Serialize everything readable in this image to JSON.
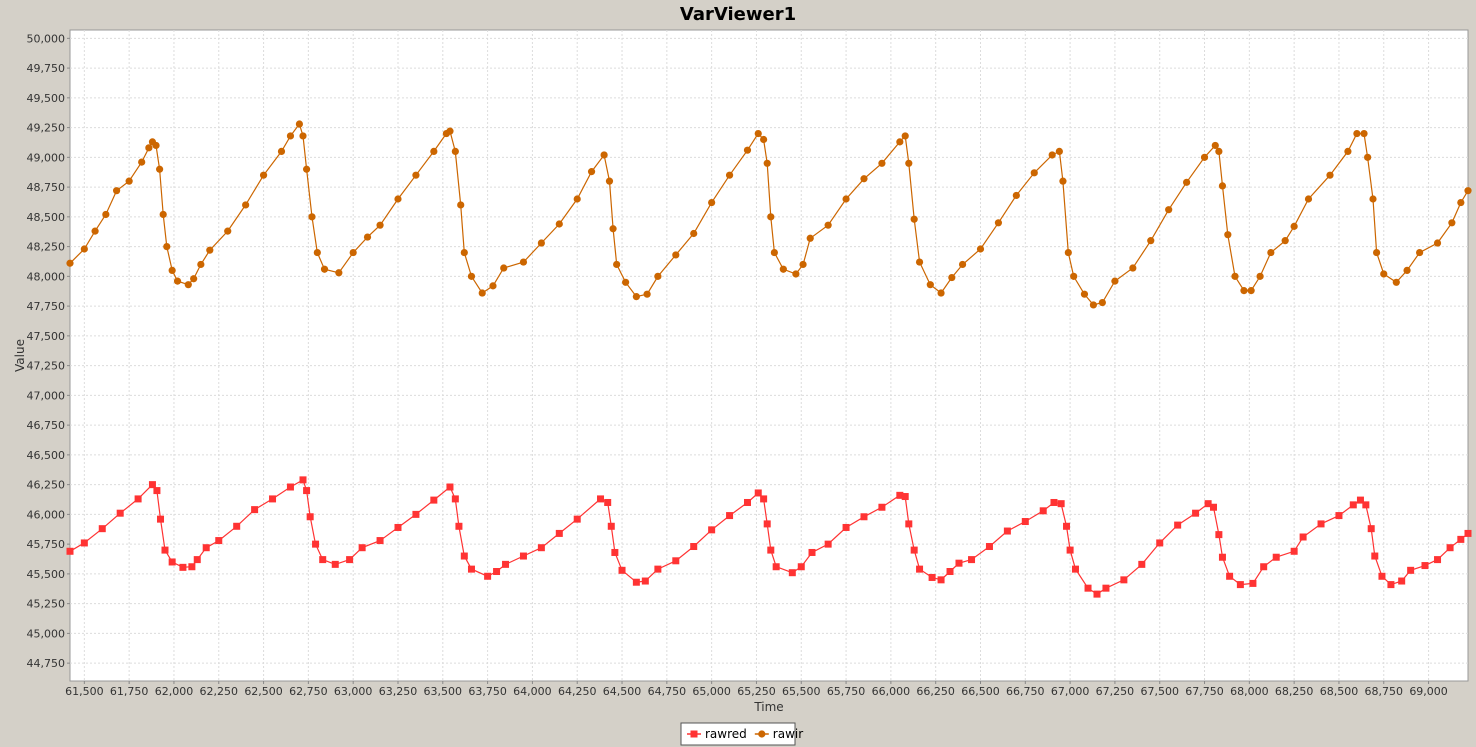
{
  "window": {
    "title": "VarViewer1"
  },
  "chart_data": {
    "type": "line",
    "title": "VarViewer1",
    "xlabel": "Time",
    "ylabel": "Value",
    "xlim": [
      61420,
      69220
    ],
    "ylim": [
      44600,
      50070
    ],
    "xticks": [
      61500,
      61750,
      62000,
      62250,
      62500,
      62750,
      63000,
      63250,
      63500,
      63750,
      64000,
      64250,
      64500,
      64750,
      65000,
      65250,
      65500,
      65750,
      66000,
      66250,
      66500,
      66750,
      67000,
      67250,
      67500,
      67750,
      68000,
      68250,
      68500,
      68750,
      69000
    ],
    "xtick_labels": [
      "61,500",
      "61,750",
      "62,000",
      "62,250",
      "62,500",
      "62,750",
      "63,000",
      "63,250",
      "63,500",
      "63,750",
      "64,000",
      "64,250",
      "64,500",
      "64,750",
      "65,000",
      "65,250",
      "65,500",
      "65,750",
      "66,000",
      "66,250",
      "66,500",
      "66,750",
      "67,000",
      "67,250",
      "67,500",
      "67,750",
      "68,000",
      "68,250",
      "68,500",
      "68,750",
      "69,000"
    ],
    "yticks": [
      44750,
      45000,
      45250,
      45500,
      45750,
      46000,
      46250,
      46500,
      46750,
      47000,
      47250,
      47500,
      47750,
      48000,
      48250,
      48500,
      48750,
      49000,
      49250,
      49500,
      49750,
      50000
    ],
    "ytick_labels": [
      "44,750",
      "45,000",
      "45,250",
      "45,500",
      "45,750",
      "46,000",
      "46,250",
      "46,500",
      "46,750",
      "47,000",
      "47,250",
      "47,500",
      "47,750",
      "48,000",
      "48,250",
      "48,500",
      "48,750",
      "49,000",
      "49,250",
      "49,500",
      "49,750",
      "50,000"
    ],
    "grid": true,
    "legend_position": "bottom-center",
    "series": [
      {
        "name": "rawred",
        "color": "#ff3333",
        "marker": "square",
        "points": [
          [
            61420,
            45690
          ],
          [
            61500,
            45760
          ],
          [
            61600,
            45880
          ],
          [
            61700,
            46010
          ],
          [
            61800,
            46130
          ],
          [
            61880,
            46250
          ],
          [
            61905,
            46200
          ],
          [
            61925,
            45960
          ],
          [
            61950,
            45700
          ],
          [
            61990,
            45600
          ],
          [
            62050,
            45555
          ],
          [
            62100,
            45560
          ],
          [
            62130,
            45620
          ],
          [
            62180,
            45720
          ],
          [
            62250,
            45780
          ],
          [
            62350,
            45900
          ],
          [
            62450,
            46040
          ],
          [
            62550,
            46130
          ],
          [
            62650,
            46230
          ],
          [
            62720,
            46290
          ],
          [
            62740,
            46200
          ],
          [
            62760,
            45980
          ],
          [
            62790,
            45750
          ],
          [
            62830,
            45620
          ],
          [
            62900,
            45580
          ],
          [
            62980,
            45620
          ],
          [
            63050,
            45720
          ],
          [
            63150,
            45780
          ],
          [
            63250,
            45890
          ],
          [
            63350,
            46000
          ],
          [
            63450,
            46120
          ],
          [
            63540,
            46230
          ],
          [
            63570,
            46130
          ],
          [
            63590,
            45900
          ],
          [
            63620,
            45650
          ],
          [
            63660,
            45540
          ],
          [
            63750,
            45480
          ],
          [
            63800,
            45520
          ],
          [
            63850,
            45580
          ],
          [
            63950,
            45650
          ],
          [
            64050,
            45720
          ],
          [
            64150,
            45840
          ],
          [
            64250,
            45960
          ],
          [
            64380,
            46130
          ],
          [
            64420,
            46100
          ],
          [
            64440,
            45900
          ],
          [
            64460,
            45680
          ],
          [
            64500,
            45530
          ],
          [
            64580,
            45430
          ],
          [
            64630,
            45440
          ],
          [
            64700,
            45540
          ],
          [
            64800,
            45610
          ],
          [
            64900,
            45730
          ],
          [
            65000,
            45870
          ],
          [
            65100,
            45990
          ],
          [
            65200,
            46100
          ],
          [
            65260,
            46180
          ],
          [
            65290,
            46130
          ],
          [
            65310,
            45920
          ],
          [
            65330,
            45700
          ],
          [
            65360,
            45560
          ],
          [
            65450,
            45510
          ],
          [
            65500,
            45560
          ],
          [
            65560,
            45680
          ],
          [
            65650,
            45750
          ],
          [
            65750,
            45890
          ],
          [
            65850,
            45980
          ],
          [
            65950,
            46060
          ],
          [
            66050,
            46160
          ],
          [
            66080,
            46150
          ],
          [
            66100,
            45920
          ],
          [
            66130,
            45700
          ],
          [
            66160,
            45540
          ],
          [
            66230,
            45470
          ],
          [
            66280,
            45450
          ],
          [
            66330,
            45520
          ],
          [
            66380,
            45590
          ],
          [
            66450,
            45620
          ],
          [
            66550,
            45730
          ],
          [
            66650,
            45860
          ],
          [
            66750,
            45940
          ],
          [
            66850,
            46030
          ],
          [
            66910,
            46100
          ],
          [
            66950,
            46090
          ],
          [
            66980,
            45900
          ],
          [
            67000,
            45700
          ],
          [
            67030,
            45540
          ],
          [
            67100,
            45380
          ],
          [
            67150,
            45330
          ],
          [
            67200,
            45380
          ],
          [
            67300,
            45450
          ],
          [
            67400,
            45580
          ],
          [
            67500,
            45760
          ],
          [
            67600,
            45910
          ],
          [
            67700,
            46010
          ],
          [
            67770,
            46090
          ],
          [
            67800,
            46060
          ],
          [
            67830,
            45830
          ],
          [
            67850,
            45640
          ],
          [
            67890,
            45480
          ],
          [
            67950,
            45410
          ],
          [
            68020,
            45420
          ],
          [
            68080,
            45560
          ],
          [
            68150,
            45640
          ],
          [
            68250,
            45690
          ],
          [
            68300,
            45810
          ],
          [
            68400,
            45920
          ],
          [
            68500,
            45990
          ],
          [
            68580,
            46080
          ],
          [
            68620,
            46120
          ],
          [
            68650,
            46080
          ],
          [
            68680,
            45880
          ],
          [
            68700,
            45650
          ],
          [
            68740,
            45480
          ],
          [
            68790,
            45410
          ],
          [
            68850,
            45440
          ],
          [
            68900,
            45530
          ],
          [
            68980,
            45570
          ],
          [
            69050,
            45620
          ],
          [
            69120,
            45720
          ],
          [
            69180,
            45790
          ],
          [
            69220,
            45840
          ]
        ]
      },
      {
        "name": "rawir",
        "color": "#cc6600",
        "marker": "circle",
        "points": [
          [
            61420,
            48110
          ],
          [
            61500,
            48230
          ],
          [
            61560,
            48380
          ],
          [
            61620,
            48520
          ],
          [
            61680,
            48720
          ],
          [
            61750,
            48800
          ],
          [
            61820,
            48960
          ],
          [
            61860,
            49080
          ],
          [
            61880,
            49130
          ],
          [
            61900,
            49100
          ],
          [
            61920,
            48900
          ],
          [
            61940,
            48520
          ],
          [
            61960,
            48250
          ],
          [
            61990,
            48050
          ],
          [
            62020,
            47960
          ],
          [
            62080,
            47930
          ],
          [
            62110,
            47980
          ],
          [
            62150,
            48100
          ],
          [
            62200,
            48220
          ],
          [
            62300,
            48380
          ],
          [
            62400,
            48600
          ],
          [
            62500,
            48850
          ],
          [
            62600,
            49050
          ],
          [
            62650,
            49180
          ],
          [
            62700,
            49280
          ],
          [
            62720,
            49180
          ],
          [
            62740,
            48900
          ],
          [
            62770,
            48500
          ],
          [
            62800,
            48200
          ],
          [
            62840,
            48060
          ],
          [
            62920,
            48030
          ],
          [
            63000,
            48200
          ],
          [
            63080,
            48330
          ],
          [
            63150,
            48430
          ],
          [
            63250,
            48650
          ],
          [
            63350,
            48850
          ],
          [
            63450,
            49050
          ],
          [
            63520,
            49200
          ],
          [
            63540,
            49220
          ],
          [
            63570,
            49050
          ],
          [
            63600,
            48600
          ],
          [
            63620,
            48200
          ],
          [
            63660,
            48000
          ],
          [
            63720,
            47860
          ],
          [
            63780,
            47920
          ],
          [
            63840,
            48070
          ],
          [
            63950,
            48120
          ],
          [
            64050,
            48280
          ],
          [
            64150,
            48440
          ],
          [
            64250,
            48650
          ],
          [
            64330,
            48880
          ],
          [
            64400,
            49020
          ],
          [
            64430,
            48800
          ],
          [
            64450,
            48400
          ],
          [
            64470,
            48100
          ],
          [
            64520,
            47950
          ],
          [
            64580,
            47830
          ],
          [
            64640,
            47850
          ],
          [
            64700,
            48000
          ],
          [
            64800,
            48180
          ],
          [
            64900,
            48360
          ],
          [
            65000,
            48620
          ],
          [
            65100,
            48850
          ],
          [
            65200,
            49060
          ],
          [
            65260,
            49200
          ],
          [
            65290,
            49150
          ],
          [
            65310,
            48950
          ],
          [
            65330,
            48500
          ],
          [
            65350,
            48200
          ],
          [
            65400,
            48060
          ],
          [
            65470,
            48020
          ],
          [
            65510,
            48100
          ],
          [
            65550,
            48320
          ],
          [
            65650,
            48430
          ],
          [
            65750,
            48650
          ],
          [
            65850,
            48820
          ],
          [
            65950,
            48950
          ],
          [
            66050,
            49130
          ],
          [
            66080,
            49180
          ],
          [
            66100,
            48950
          ],
          [
            66130,
            48480
          ],
          [
            66160,
            48120
          ],
          [
            66220,
            47930
          ],
          [
            66280,
            47860
          ],
          [
            66340,
            47990
          ],
          [
            66400,
            48100
          ],
          [
            66500,
            48230
          ],
          [
            66600,
            48450
          ],
          [
            66700,
            48680
          ],
          [
            66800,
            48870
          ],
          [
            66900,
            49020
          ],
          [
            66940,
            49050
          ],
          [
            66960,
            48800
          ],
          [
            66990,
            48200
          ],
          [
            67020,
            48000
          ],
          [
            67080,
            47850
          ],
          [
            67130,
            47760
          ],
          [
            67180,
            47780
          ],
          [
            67250,
            47960
          ],
          [
            67350,
            48070
          ],
          [
            67450,
            48300
          ],
          [
            67550,
            48560
          ],
          [
            67650,
            48790
          ],
          [
            67750,
            49000
          ],
          [
            67810,
            49100
          ],
          [
            67830,
            49050
          ],
          [
            67850,
            48760
          ],
          [
            67880,
            48350
          ],
          [
            67920,
            48000
          ],
          [
            67970,
            47880
          ],
          [
            68010,
            47880
          ],
          [
            68060,
            48000
          ],
          [
            68120,
            48200
          ],
          [
            68200,
            48300
          ],
          [
            68250,
            48420
          ],
          [
            68330,
            48650
          ],
          [
            68450,
            48850
          ],
          [
            68550,
            49050
          ],
          [
            68600,
            49200
          ],
          [
            68640,
            49200
          ],
          [
            68660,
            49000
          ],
          [
            68690,
            48650
          ],
          [
            68710,
            48200
          ],
          [
            68750,
            48020
          ],
          [
            68820,
            47950
          ],
          [
            68880,
            48050
          ],
          [
            68950,
            48200
          ],
          [
            69050,
            48280
          ],
          [
            69130,
            48450
          ],
          [
            69180,
            48620
          ],
          [
            69220,
            48720
          ]
        ]
      }
    ]
  }
}
